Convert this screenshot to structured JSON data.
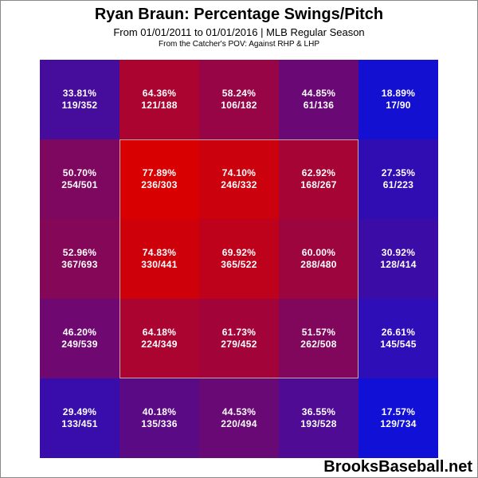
{
  "chart_data": {
    "type": "heatmap",
    "title": "Ryan Braun: Percentage Swings/Pitch",
    "subtitle": "From 01/01/2011 to 01/01/2016 | MLB Regular Season",
    "subtitle2": "From the Catcher's POV:   Against RHP & LHP",
    "rows": 5,
    "cols": 5,
    "strike_zone": {
      "row_start": 1,
      "row_end": 3,
      "col_start": 1,
      "col_end": 3
    },
    "cells": [
      [
        {
          "pct": "33.81%",
          "frac": "119/352",
          "value": 33.81
        },
        {
          "pct": "64.36%",
          "frac": "121/188",
          "value": 64.36
        },
        {
          "pct": "58.24%",
          "frac": "106/182",
          "value": 58.24
        },
        {
          "pct": "44.85%",
          "frac": "61/136",
          "value": 44.85
        },
        {
          "pct": "18.89%",
          "frac": "17/90",
          "value": 18.89
        }
      ],
      [
        {
          "pct": "50.70%",
          "frac": "254/501",
          "value": 50.7
        },
        {
          "pct": "77.89%",
          "frac": "236/303",
          "value": 77.89
        },
        {
          "pct": "74.10%",
          "frac": "246/332",
          "value": 74.1
        },
        {
          "pct": "62.92%",
          "frac": "168/267",
          "value": 62.92
        },
        {
          "pct": "27.35%",
          "frac": "61/223",
          "value": 27.35
        }
      ],
      [
        {
          "pct": "52.96%",
          "frac": "367/693",
          "value": 52.96
        },
        {
          "pct": "74.83%",
          "frac": "330/441",
          "value": 74.83
        },
        {
          "pct": "69.92%",
          "frac": "365/522",
          "value": 69.92
        },
        {
          "pct": "60.00%",
          "frac": "288/480",
          "value": 60.0
        },
        {
          "pct": "30.92%",
          "frac": "128/414",
          "value": 30.92
        }
      ],
      [
        {
          "pct": "46.20%",
          "frac": "249/539",
          "value": 46.2
        },
        {
          "pct": "64.18%",
          "frac": "224/349",
          "value": 64.18
        },
        {
          "pct": "61.73%",
          "frac": "279/452",
          "value": 61.73
        },
        {
          "pct": "51.57%",
          "frac": "262/508",
          "value": 51.57
        },
        {
          "pct": "26.61%",
          "frac": "145/545",
          "value": 26.61
        }
      ],
      [
        {
          "pct": "29.49%",
          "frac": "133/451",
          "value": 29.49
        },
        {
          "pct": "40.18%",
          "frac": "135/336",
          "value": 40.18
        },
        {
          "pct": "44.53%",
          "frac": "220/494",
          "value": 44.53
        },
        {
          "pct": "36.55%",
          "frac": "193/528",
          "value": 36.55
        },
        {
          "pct": "17.57%",
          "frac": "129/734",
          "value": 17.57
        }
      ]
    ],
    "color_scale": {
      "low_value": 17.57,
      "high_value": 77.89,
      "low_color": "#1010d6",
      "high_color": "#d80000"
    }
  },
  "brand": "BrooksBaseball.net"
}
